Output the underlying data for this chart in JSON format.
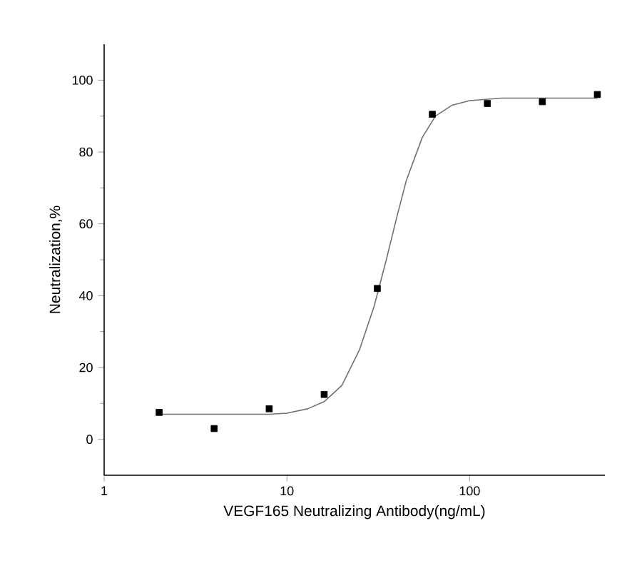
{
  "chart_data": {
    "type": "scatter",
    "xlabel": "VEGF165 Neutralizing Antibody(ng/mL)",
    "ylabel": "Neutralization,%",
    "log": "x",
    "grid": false,
    "xlim": [
      1,
      550
    ],
    "xticks": [
      1,
      10,
      100
    ],
    "ylim": [
      -10,
      110
    ],
    "yticks": [
      0,
      20,
      40,
      60,
      80,
      100
    ],
    "series": [
      {
        "marker": "square",
        "color": "#000000",
        "x": [
          2,
          4,
          8,
          16,
          31.25,
          62.5,
          125,
          250,
          500
        ],
        "values": [
          7.5,
          3,
          8.5,
          12.5,
          42,
          90.5,
          93.5,
          94,
          96
        ]
      },
      {
        "type": "line",
        "marker": "none",
        "line_style": "solid",
        "color": "#707070",
        "x": [
          2,
          5,
          8,
          10,
          13,
          16,
          20,
          25,
          30,
          35,
          40,
          45,
          55,
          65,
          80,
          100,
          150,
          300,
          500
        ],
        "values": [
          7,
          7,
          7,
          7.3,
          8.5,
          10.5,
          15,
          25,
          37,
          50,
          62,
          72,
          84,
          90,
          93,
          94.3,
          95,
          95,
          95
        ]
      }
    ]
  }
}
